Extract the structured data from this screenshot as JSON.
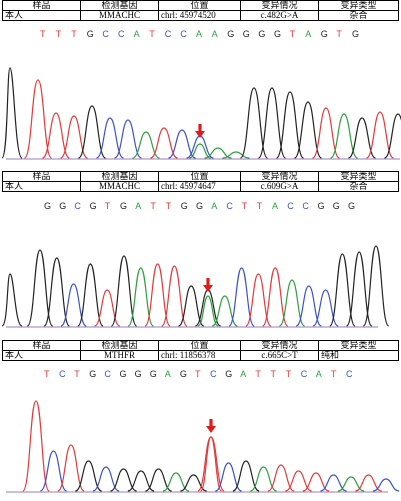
{
  "panels": [
    {
      "headers": [
        "样品",
        "检测基因",
        "位置",
        "变异情况",
        "变异类型"
      ],
      "row": [
        "本人",
        "MMACHC",
        "chrl: 45974520",
        "c.482G>A",
        "杂合"
      ],
      "sequence": [
        "T",
        "T",
        "T",
        "G",
        "C",
        "C",
        "A",
        "T",
        "C",
        "C",
        "A",
        "A",
        "G",
        "G",
        "G",
        "G",
        "T",
        "A",
        "G",
        "T",
        "G"
      ],
      "arrow_index": 9
    },
    {
      "headers": [
        "样品",
        "检测基因",
        "位置",
        "变异情况",
        "变异类型"
      ],
      "row": [
        "本人",
        "MMACHC",
        "chrl: 45974647",
        "c.609G>A",
        "杂合"
      ],
      "sequence": [
        "G",
        "G",
        "C",
        "G",
        "T",
        "G",
        "A",
        "T",
        "T",
        "G",
        "G",
        "A",
        "C",
        "T",
        "T",
        "A",
        "C",
        "C",
        "G",
        "G",
        "G"
      ],
      "arrow_index": 10
    },
    {
      "headers": [
        "样品",
        "检测基因",
        "位置",
        "变异情况",
        "变异类型"
      ],
      "row": [
        "本人",
        "MTHFR",
        "chrl: 11856378",
        "c.665C>T",
        "纯和"
      ],
      "sequence": [
        "T",
        "C",
        "T",
        "G",
        "C",
        "G",
        "G",
        "G",
        "A",
        "G",
        "T",
        "C",
        "G",
        "A",
        "T",
        "T",
        "T",
        "C",
        "A",
        "T",
        "C"
      ],
      "arrow_index": 10
    }
  ],
  "colors": {
    "A": "#2e9e3e",
    "C": "#3c52c8",
    "G": "#222222",
    "T": "#e23a3a",
    "arrow": "#e01b1b"
  }
}
